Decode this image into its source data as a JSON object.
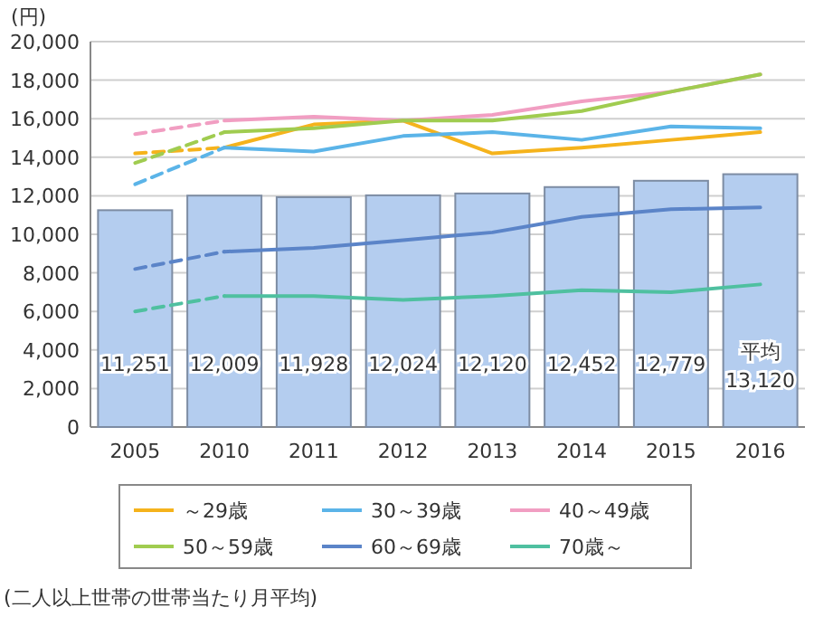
{
  "chart_data": {
    "type": "bar",
    "ylabel": "(円)",
    "categories": [
      "2005",
      "2010",
      "2011",
      "2012",
      "2013",
      "2014",
      "2015",
      "2016"
    ],
    "ylim": [
      0,
      20000
    ],
    "yticks": [
      {
        "value": 0,
        "label": "0"
      },
      {
        "value": 2000,
        "label": "2,000"
      },
      {
        "value": 4000,
        "label": "4,000"
      },
      {
        "value": 6000,
        "label": "6,000"
      },
      {
        "value": 8000,
        "label": "8,000"
      },
      {
        "value": 10000,
        "label": "10,000"
      },
      {
        "value": 12000,
        "label": "12,000"
      },
      {
        "value": 14000,
        "label": "14,000"
      },
      {
        "value": 16000,
        "label": "16,000"
      },
      {
        "value": 18000,
        "label": "18,000"
      },
      {
        "value": 20000,
        "label": "20,000"
      }
    ],
    "grid": "y",
    "legend": "bottom",
    "series": [
      {
        "type": "bar",
        "color": "#b4cdef",
        "values": [
          11251,
          12009,
          11928,
          12024,
          12120,
          12452,
          12779,
          13120
        ],
        "value_labels": [
          "11,251",
          "12,009",
          "11,928",
          "12,024",
          "12,120",
          "12,452",
          "12,779",
          "13,120"
        ]
      },
      {
        "type": "line",
        "name": "～29歳",
        "color": "#f5b31c",
        "values": [
          null,
          14500,
          15700,
          15900,
          14200,
          14500,
          14900,
          15300
        ]
      },
      {
        "type": "line",
        "name": "30～39歳",
        "color": "#5bb4e8",
        "values": [
          null,
          14500,
          14300,
          15100,
          15300,
          14900,
          15600,
          15500
        ]
      },
      {
        "type": "line",
        "name": "40～49歳",
        "color": "#f19ec2",
        "values": [
          null,
          15900,
          16100,
          15900,
          16200,
          16900,
          17400,
          18300
        ]
      },
      {
        "type": "line",
        "name": "50～59歳",
        "color": "#a0cc50",
        "values": [
          null,
          15300,
          15500,
          15900,
          15900,
          16400,
          17400,
          18300
        ]
      },
      {
        "type": "line",
        "name": "60～69歳",
        "color": "#5b84c8",
        "values": [
          null,
          9100,
          9300,
          9700,
          10100,
          10900,
          11300,
          11400
        ]
      },
      {
        "type": "line",
        "name": "70歳～",
        "color": "#4fc0a0",
        "values": [
          null,
          6800,
          6800,
          6600,
          6800,
          7100,
          7000,
          7400
        ]
      },
      {
        "type": "line",
        "color": "#f5b31c",
        "line_style": "dashed",
        "values": [
          14200,
          14500,
          null,
          null,
          null,
          null,
          null,
          null
        ]
      },
      {
        "type": "line",
        "color": "#5bb4e8",
        "line_style": "dashed",
        "values": [
          12600,
          14500,
          null,
          null,
          null,
          null,
          null,
          null
        ]
      },
      {
        "type": "line",
        "color": "#f19ec2",
        "line_style": "dashed",
        "values": [
          15200,
          15900,
          null,
          null,
          null,
          null,
          null,
          null
        ]
      },
      {
        "type": "line",
        "color": "#a0cc50",
        "line_style": "dashed",
        "values": [
          13700,
          15300,
          null,
          null,
          null,
          null,
          null,
          null
        ]
      },
      {
        "type": "line",
        "color": "#5b84c8",
        "line_style": "dashed",
        "values": [
          8200,
          9100,
          null,
          null,
          null,
          null,
          null,
          null
        ]
      },
      {
        "type": "line",
        "color": "#4fc0a0",
        "line_style": "dashed",
        "values": [
          6000,
          6800,
          null,
          null,
          null,
          null,
          null,
          null
        ]
      }
    ],
    "annotations": [
      "平均",
      "(二人以上世帯の世帯当たり月平均)"
    ]
  }
}
